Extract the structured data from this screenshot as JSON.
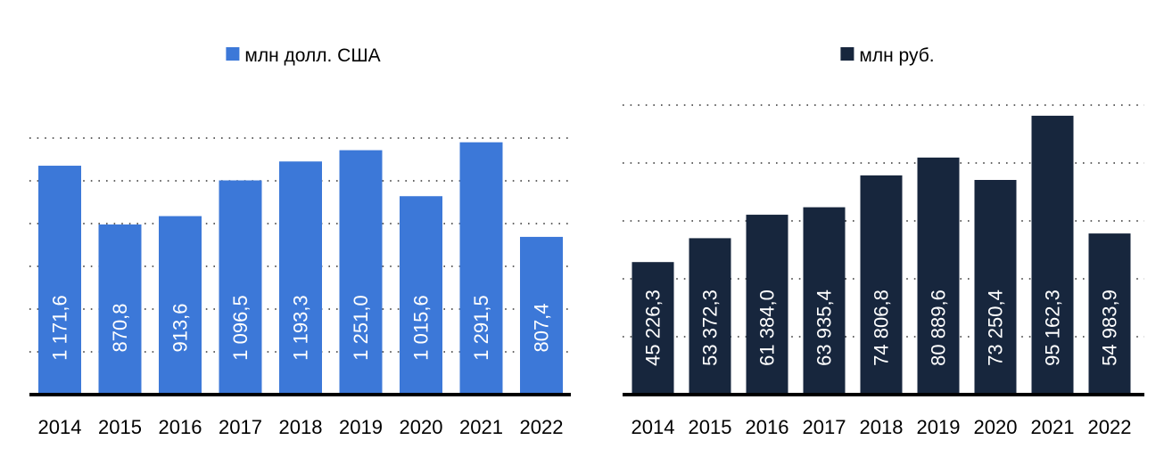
{
  "chart_data": [
    {
      "type": "bar",
      "legend": "млн долл. США",
      "color": "#3c78d8",
      "categories": [
        "2014",
        "2015",
        "2016",
        "2017",
        "2018",
        "2019",
        "2020",
        "2021",
        "2022"
      ],
      "values": [
        1171.6,
        870.8,
        913.6,
        1096.5,
        1193.3,
        1251.0,
        1015.6,
        1291.5,
        807.4
      ],
      "value_labels": [
        "1 171,6",
        "870,8",
        "913,6",
        "1 096,5",
        "1 193,3",
        "1 251,0",
        "1 015,6",
        "1 291,5",
        "807,4"
      ],
      "ylim": [
        0,
        1500
      ],
      "grid": true,
      "legend_position": "top-center"
    },
    {
      "type": "bar",
      "legend": "млн руб.",
      "color": "#17263d",
      "categories": [
        "2014",
        "2015",
        "2016",
        "2017",
        "2018",
        "2019",
        "2020",
        "2021",
        "2022"
      ],
      "values": [
        45226.3,
        53372.3,
        61384.0,
        63935.4,
        74806.8,
        80889.6,
        73250.4,
        95162.3,
        54983.9
      ],
      "value_labels": [
        "45 226,3",
        "53 372,3",
        "61 384,0",
        "63 935,4",
        "74 806,8",
        "80 889,6",
        "73 250,4",
        "95 162,3",
        "54 983,9"
      ],
      "ylim": [
        0,
        100000
      ],
      "grid": true,
      "legend_position": "top-center"
    }
  ]
}
